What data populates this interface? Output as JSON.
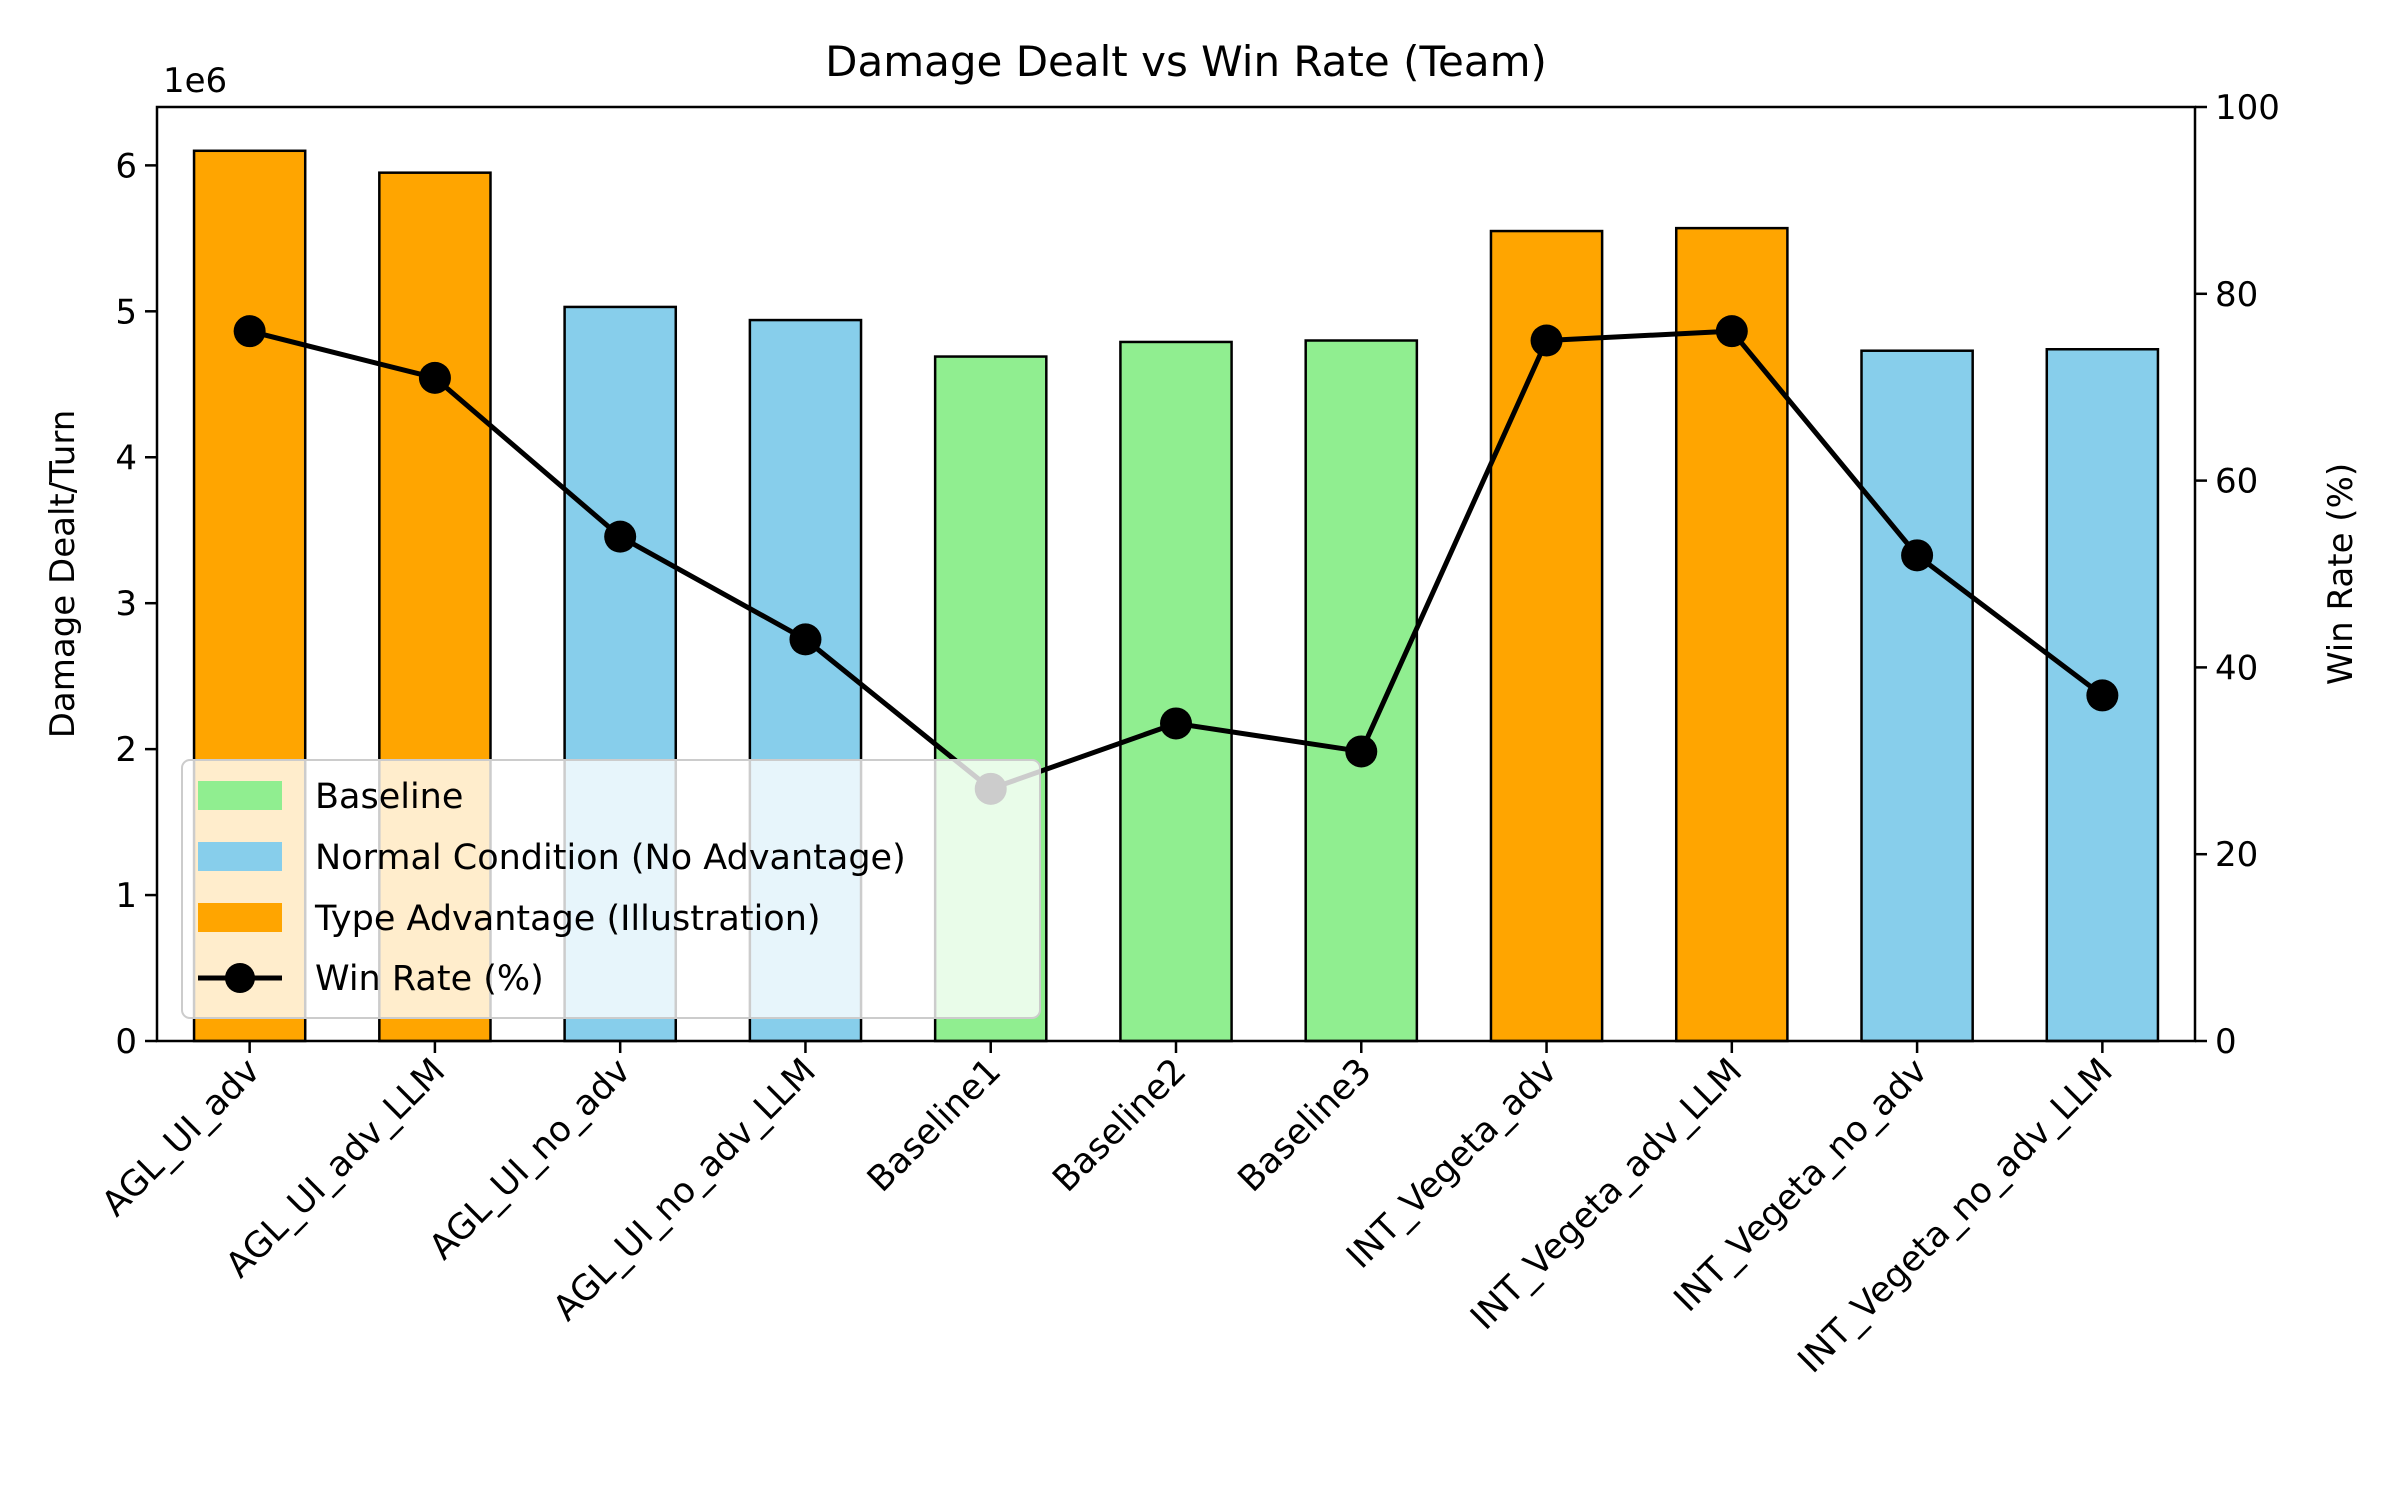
{
  "chart_data": {
    "type": "bar",
    "title": "Damage Dealt vs Win Rate (Team)",
    "ylabel": "Damage Dealt/Turn",
    "y2label": "Win Rate (%)",
    "y_multiplier": "1e6",
    "ylim": [
      0,
      6.4
    ],
    "y_ticks": [
      0,
      1,
      2,
      3,
      4,
      5,
      6
    ],
    "y2lim": [
      0,
      100
    ],
    "y2_ticks": [
      0,
      20,
      40,
      60,
      80,
      100
    ],
    "grid": false,
    "legend_position": "lower-left",
    "categories": [
      "AGL_UI_adv",
      "AGL_UI_adv_LLM",
      "AGL_UI_no_adv",
      "AGL_UI_no_adv_LLM",
      "Baseline1",
      "Baseline2",
      "Baseline3",
      "INT_Vegeta_adv",
      "INT_Vegeta_adv_LLM",
      "INT_Vegeta_no_adv",
      "INT_Vegeta_no_adv_LLM"
    ],
    "values": [
      6.1,
      5.95,
      5.03,
      4.94,
      4.69,
      4.79,
      4.8,
      5.55,
      5.57,
      4.73,
      4.74
    ],
    "bar_groups": [
      "adv",
      "adv",
      "normal",
      "normal",
      "baseline",
      "baseline",
      "baseline",
      "adv",
      "adv",
      "normal",
      "normal"
    ],
    "win_rate": [
      76,
      71,
      54,
      43,
      27,
      34,
      31,
      75,
      76,
      52,
      37
    ],
    "legend": {
      "baseline": "Baseline",
      "normal": "Normal Condition (No Advantage)",
      "adv": "Type Advantage (Illustration)",
      "win_rate": "Win Rate (%)"
    },
    "colors": {
      "baseline": "#90ee90",
      "normal": "#87ceeb",
      "adv": "#ffa500",
      "line": "#000000"
    }
  }
}
